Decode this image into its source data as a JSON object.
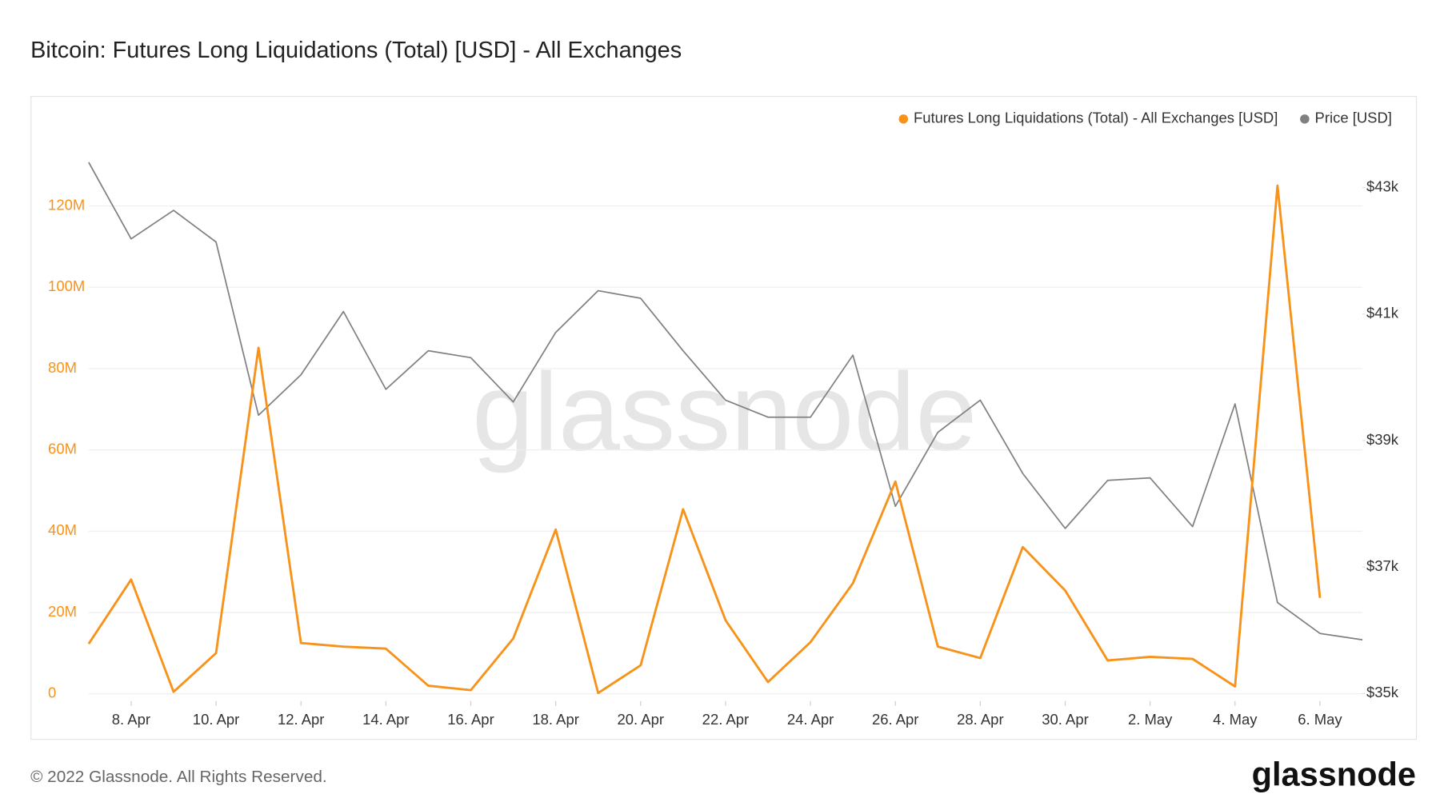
{
  "chart_data": {
    "type": "line",
    "title": "Bitcoin: Futures Long Liquidations (Total) [USD] - All Exchanges",
    "watermark": "glassnode",
    "footer": "© 2022 Glassnode. All Rights Reserved.",
    "logo": "glassnode",
    "legend": "top-right",
    "grid": true,
    "categories": [
      null,
      "8. Apr",
      null,
      "10. Apr",
      null,
      "12. Apr",
      null,
      "14. Apr",
      null,
      "16. Apr",
      null,
      "18. Apr",
      null,
      "20. Apr",
      null,
      "22. Apr",
      null,
      "24. Apr",
      null,
      "26. Apr",
      null,
      "28. Apr",
      null,
      "30. Apr",
      null,
      "2. May",
      null,
      "4. May",
      null,
      "6. May",
      null
    ],
    "series": [
      {
        "name": "Futures Long Liquidations (Total) - All Exchanges [USD]",
        "color": "#f7931a",
        "axis": "y",
        "values": [
          12300000,
          28100000,
          500000,
          10000000,
          85100000,
          12500000,
          11600000,
          11100000,
          2000000,
          900000,
          13600000,
          40400000,
          200000,
          7000000,
          45400000,
          18100000,
          2900000,
          12700000,
          27200000,
          52200000,
          11600000,
          8800000,
          36100000,
          25400000,
          8200000,
          9100000,
          8600000,
          1800000,
          125000000,
          23600000,
          null
        ]
      },
      {
        "name": "Price [USD]",
        "color": "#808080",
        "axis": "y2",
        "values": [
          43400,
          42190,
          42640,
          42140,
          39400,
          40040,
          41040,
          39810,
          40420,
          40310,
          39610,
          40710,
          41370,
          41250,
          40420,
          39640,
          39370,
          39370,
          40350,
          37960,
          39130,
          39640,
          38480,
          37610,
          38370,
          38410,
          37640,
          39580,
          36440,
          35950,
          35850
        ]
      }
    ],
    "ylim": [
      -1800000,
      138200000
    ],
    "yticks": [
      {
        "value": 0,
        "label": "0"
      },
      {
        "value": 20000000,
        "label": "20M"
      },
      {
        "value": 40000000,
        "label": "40M"
      },
      {
        "value": 60000000,
        "label": "60M"
      },
      {
        "value": 80000000,
        "label": "80M"
      },
      {
        "value": 100000000,
        "label": "100M"
      },
      {
        "value": 120000000,
        "label": "120M"
      }
    ],
    "y2lim": [
      34880,
      43880
    ],
    "y2ticks": [
      {
        "value": 35000,
        "label": "$35k"
      },
      {
        "value": 37000,
        "label": "$37k"
      },
      {
        "value": 39000,
        "label": "$39k"
      },
      {
        "value": 41000,
        "label": "$41k"
      },
      {
        "value": 43000,
        "label": "$43k"
      }
    ]
  }
}
